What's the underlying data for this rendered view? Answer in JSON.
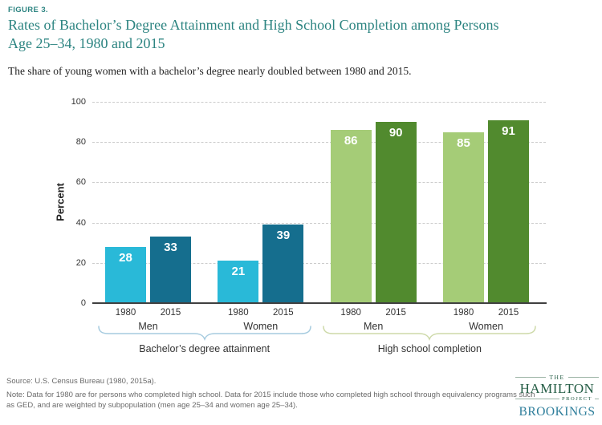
{
  "header": {
    "figure_label": "FIGURE 3.",
    "title_line1": "Rates of Bachelor’s Degree Attainment and High School Completion among Persons",
    "title_line2": "Age 25–34, 1980 and 2015",
    "subtitle": "The share of young women with a bachelor’s degree nearly doubled between 1980 and 2015."
  },
  "chart_data": {
    "type": "bar",
    "title": "Rates of Bachelor’s Degree Attainment and High School Completion among Persons Age 25–34, 1980 and 2015",
    "xlabel": "",
    "ylabel": "Percent",
    "ylim": [
      0,
      100
    ],
    "yticks": [
      0,
      20,
      40,
      60,
      80,
      100
    ],
    "grid": "horizontal-dashed",
    "bar_value_labels": "white, inside top of bars",
    "groups": [
      {
        "label": "Bachelor’s degree attainment",
        "brace_color": "#a6cbdf",
        "subgroups": [
          {
            "label": "Men",
            "bars": [
              {
                "year": "1980",
                "value": 28,
                "color": "#29b9d8"
              },
              {
                "year": "2015",
                "value": 33,
                "color": "#156e8e"
              }
            ]
          },
          {
            "label": "Women",
            "bars": [
              {
                "year": "1980",
                "value": 21,
                "color": "#29b9d8"
              },
              {
                "year": "2015",
                "value": 39,
                "color": "#156e8e"
              }
            ]
          }
        ]
      },
      {
        "label": "High school completion",
        "brace_color": "#cdd9a8",
        "subgroups": [
          {
            "label": "Men",
            "bars": [
              {
                "year": "1980",
                "value": 86,
                "color": "#a5cc77"
              },
              {
                "year": "2015",
                "value": 90,
                "color": "#518a2e"
              }
            ]
          },
          {
            "label": "Women",
            "bars": [
              {
                "year": "1980",
                "value": 85,
                "color": "#a5cc77"
              },
              {
                "year": "2015",
                "value": 91,
                "color": "#518a2e"
              }
            ]
          }
        ]
      }
    ]
  },
  "footer": {
    "source": "Source: U.S. Census Bureau (1980, 2015a).",
    "note_line1": "Note: Data for 1980 are for persons who completed high school. Data for 2015 include those who completed high school through equivalency programs such",
    "note_line2": "as GED, and are weighted by subpopulation (men age 25–34 and women age 25–34).",
    "logo": {
      "the": "THE",
      "hamilton": "HAMILTON",
      "project": "PROJECT",
      "brookings": "BROOKINGS"
    }
  },
  "colors": {
    "title_teal": "#2c8481",
    "bar_1980_bachelors": "#29b9d8",
    "bar_2015_bachelors": "#156e8e",
    "bar_1980_hs": "#a5cc77",
    "bar_2015_hs": "#518a2e",
    "gridline": "#cccccc",
    "axis": "#404040"
  }
}
